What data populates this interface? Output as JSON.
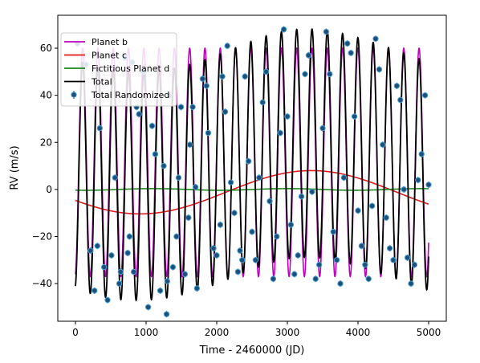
{
  "chart_data": {
    "type": "line",
    "xlabel": "Time - 2460000 (JD)",
    "ylabel": "RV (m/s)",
    "xlim": [
      -250,
      5250
    ],
    "ylim": [
      -56,
      74
    ],
    "xticks": [
      0,
      1000,
      2000,
      3000,
      4000,
      5000
    ],
    "yticks": [
      -40,
      -20,
      0,
      20,
      40,
      60
    ],
    "xtick_labels": [
      "0",
      "1000",
      "2000",
      "3000",
      "4000",
      "5000"
    ],
    "ytick_labels": [
      "−40",
      "−20",
      "0",
      "20",
      "40",
      "60"
    ],
    "grid": false,
    "legend_position": "upper-left",
    "series": [
      {
        "name": "Planet b",
        "kind": "sinusoid",
        "color": "#bf00bf",
        "amplitude": 48.5,
        "offset": 11.5,
        "period": 216.5,
        "peak_time": 2050,
        "t_start": 0,
        "t_end": 5000
      },
      {
        "name": "Planet c",
        "kind": "sinusoid",
        "color": "#e31a1c",
        "amplitude": 9.2,
        "offset": -1.2,
        "period": 4850,
        "peak_time": 3340,
        "t_start": 0,
        "t_end": 5000
      },
      {
        "name": "Fictitious Planet d",
        "kind": "sinusoid",
        "color": "#1a8a1a",
        "amplitude": 0.35,
        "offset": 0,
        "period": 1900,
        "peak_time": 1100,
        "t_start": 0,
        "t_end": 5000
      },
      {
        "name": "Total",
        "kind": "sum",
        "color": "#000000",
        "t_start": 0,
        "t_end": 5000
      }
    ],
    "scatter": {
      "name": "Total Randomized",
      "color": "#1f4e79",
      "edge_color": "#4aa3d8",
      "points": [
        [
          30,
          62
        ],
        [
          150,
          53
        ],
        [
          215,
          -26
        ],
        [
          270,
          -43
        ],
        [
          310,
          -24
        ],
        [
          345,
          26
        ],
        [
          405,
          -33
        ],
        [
          455,
          -47
        ],
        [
          510,
          -28
        ],
        [
          560,
          5
        ],
        [
          620,
          -40
        ],
        [
          640,
          -35
        ],
        [
          700,
          56
        ],
        [
          740,
          -27
        ],
        [
          765,
          -20
        ],
        [
          805,
          54
        ],
        [
          825,
          -35
        ],
        [
          865,
          35
        ],
        [
          900,
          32
        ],
        [
          965,
          50
        ],
        [
          1030,
          -50
        ],
        [
          1085,
          27
        ],
        [
          1130,
          15
        ],
        [
          1200,
          -43
        ],
        [
          1250,
          10
        ],
        [
          1290,
          -53
        ],
        [
          1300,
          -39
        ],
        [
          1330,
          40
        ],
        [
          1380,
          -33
        ],
        [
          1430,
          -20
        ],
        [
          1460,
          5
        ],
        [
          1495,
          35
        ],
        [
          1550,
          -36
        ],
        [
          1600,
          -12
        ],
        [
          1620,
          19
        ],
        [
          1660,
          35
        ],
        [
          1700,
          1
        ],
        [
          1720,
          -42
        ],
        [
          1800,
          47
        ],
        [
          1855,
          44
        ],
        [
          1880,
          24
        ],
        [
          1955,
          -25
        ],
        [
          2000,
          -28
        ],
        [
          2050,
          -15
        ],
        [
          2080,
          48
        ],
        [
          2120,
          33
        ],
        [
          2150,
          61
        ],
        [
          2200,
          3
        ],
        [
          2250,
          -10
        ],
        [
          2300,
          -35
        ],
        [
          2330,
          -26
        ],
        [
          2360,
          -30
        ],
        [
          2400,
          48
        ],
        [
          2450,
          12
        ],
        [
          2500,
          -18
        ],
        [
          2550,
          -30
        ],
        [
          2600,
          5
        ],
        [
          2650,
          37
        ],
        [
          2700,
          50
        ],
        [
          2750,
          -5
        ],
        [
          2800,
          -38
        ],
        [
          2850,
          -20
        ],
        [
          2900,
          24
        ],
        [
          2950,
          68
        ],
        [
          3000,
          31
        ],
        [
          3050,
          -15
        ],
        [
          3100,
          -36
        ],
        [
          3150,
          -28
        ],
        [
          3200,
          -3
        ],
        [
          3250,
          49
        ],
        [
          3300,
          57
        ],
        [
          3350,
          -1
        ],
        [
          3400,
          -38
        ],
        [
          3450,
          -32
        ],
        [
          3500,
          26
        ],
        [
          3550,
          67
        ],
        [
          3600,
          49
        ],
        [
          3650,
          -18
        ],
        [
          3700,
          -30
        ],
        [
          3750,
          -40
        ],
        [
          3800,
          5
        ],
        [
          3850,
          62
        ],
        [
          3900,
          58
        ],
        [
          3950,
          31
        ],
        [
          4000,
          -9
        ],
        [
          4050,
          -24
        ],
        [
          4100,
          -32
        ],
        [
          4150,
          -38
        ],
        [
          4200,
          -7
        ],
        [
          4250,
          64
        ],
        [
          4300,
          51
        ],
        [
          4350,
          19
        ],
        [
          4400,
          -12
        ],
        [
          4450,
          -25
        ],
        [
          4500,
          -30
        ],
        [
          4550,
          44
        ],
        [
          4600,
          38
        ],
        [
          4650,
          0
        ],
        [
          4700,
          -29
        ],
        [
          4750,
          -40
        ],
        [
          4800,
          -32
        ],
        [
          4850,
          4
        ],
        [
          4900,
          15
        ],
        [
          4950,
          40
        ],
        [
          5000,
          2
        ]
      ]
    }
  }
}
